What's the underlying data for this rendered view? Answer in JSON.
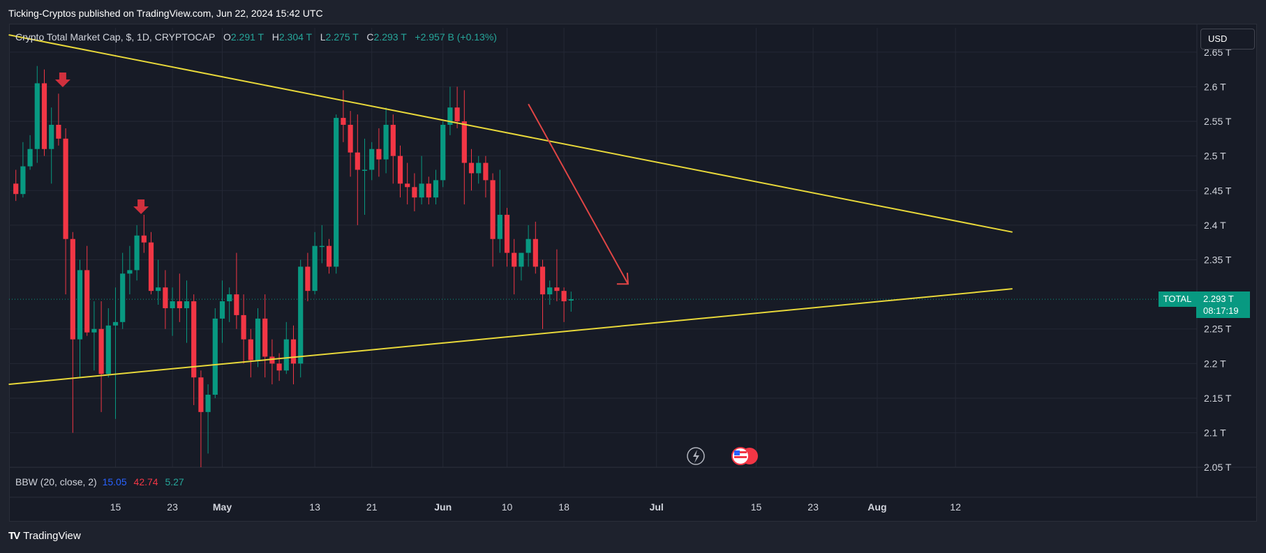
{
  "publisher": "Ticking-Cryptos published on TradingView.com, Jun 22, 2024 15:42 UTC",
  "legend": {
    "symbol": "Crypto Total Market Cap, $, 1D, CRYPTOCAP",
    "o_label": "O",
    "o_value": "2.291 T",
    "h_label": "H",
    "h_value": "2.304 T",
    "l_label": "L",
    "l_value": "2.275 T",
    "c_label": "C",
    "c_value": "2.293 T",
    "change": "+2.957 B (+0.13%)"
  },
  "currency_button": "USD",
  "indicator": {
    "name": "BBW (20, close, 2)",
    "v1": "15.05",
    "v2": "42.74",
    "v3": "5.27"
  },
  "price_tag": {
    "symbol": "TOTAL",
    "price": "2.293 T",
    "countdown": "08:17:19"
  },
  "footer": {
    "logo": "TV",
    "brand": "TradingView"
  },
  "colors": {
    "up": "#089981",
    "down": "#f23645",
    "trendline": "#e8d83a",
    "arrow": "#e04545",
    "background": "#171b26"
  },
  "chart_data": {
    "type": "candlestick",
    "y_unit": "T USD",
    "ylim": [
      2.02,
      2.68
    ],
    "y_ticks": [
      2.05,
      2.1,
      2.15,
      2.2,
      2.25,
      2.35,
      2.4,
      2.45,
      2.5,
      2.55,
      2.6,
      2.65
    ],
    "y_tick_labels": [
      "2.05 T",
      "2.1 T",
      "2.15 T",
      "2.2 T",
      "2.25 T",
      "2.35 T",
      "2.4 T",
      "2.45 T",
      "2.5 T",
      "2.55 T",
      "2.6 T",
      "2.65 T"
    ],
    "x_axis_labels": [
      {
        "label": "15",
        "day": 15
      },
      {
        "label": "23",
        "day": 23
      },
      {
        "label": "May",
        "day": 30,
        "bold": true
      },
      {
        "label": "13",
        "day": 43
      },
      {
        "label": "21",
        "day": 51
      },
      {
        "label": "Jun",
        "day": 61,
        "bold": true
      },
      {
        "label": "10",
        "day": 70
      },
      {
        "label": "18",
        "day": 78
      },
      {
        "label": "Jul",
        "day": 91,
        "bold": true
      },
      {
        "label": "15",
        "day": 105
      },
      {
        "label": "23",
        "day": 113
      },
      {
        "label": "Aug",
        "day": 122,
        "bold": true
      },
      {
        "label": "12",
        "day": 133
      }
    ],
    "candles": [
      {
        "day": 1,
        "o": 2.46,
        "h": 2.48,
        "l": 2.435,
        "c": 2.445
      },
      {
        "day": 2,
        "o": 2.445,
        "h": 2.52,
        "l": 2.44,
        "c": 2.485
      },
      {
        "day": 3,
        "o": 2.485,
        "h": 2.53,
        "l": 2.48,
        "c": 2.51
      },
      {
        "day": 4,
        "o": 2.51,
        "h": 2.63,
        "l": 2.49,
        "c": 2.605
      },
      {
        "day": 5,
        "o": 2.605,
        "h": 2.625,
        "l": 2.5,
        "c": 2.51
      },
      {
        "day": 6,
        "o": 2.51,
        "h": 2.57,
        "l": 2.46,
        "c": 2.545
      },
      {
        "day": 7,
        "o": 2.545,
        "h": 2.59,
        "l": 2.515,
        "c": 2.525
      },
      {
        "day": 8,
        "o": 2.525,
        "h": 2.54,
        "l": 2.3,
        "c": 2.38
      },
      {
        "day": 9,
        "o": 2.38,
        "h": 2.39,
        "l": 2.1,
        "c": 2.235
      },
      {
        "day": 10,
        "o": 2.235,
        "h": 2.35,
        "l": 2.18,
        "c": 2.335
      },
      {
        "day": 11,
        "o": 2.335,
        "h": 2.37,
        "l": 2.24,
        "c": 2.245
      },
      {
        "day": 12,
        "o": 2.245,
        "h": 2.29,
        "l": 2.19,
        "c": 2.25
      },
      {
        "day": 13,
        "o": 2.25,
        "h": 2.29,
        "l": 2.13,
        "c": 2.185
      },
      {
        "day": 14,
        "o": 2.185,
        "h": 2.28,
        "l": 2.18,
        "c": 2.255
      },
      {
        "day": 15,
        "o": 2.255,
        "h": 2.31,
        "l": 2.12,
        "c": 2.26
      },
      {
        "day": 16,
        "o": 2.26,
        "h": 2.36,
        "l": 2.25,
        "c": 2.33
      },
      {
        "day": 17,
        "o": 2.33,
        "h": 2.37,
        "l": 2.3,
        "c": 2.335
      },
      {
        "day": 18,
        "o": 2.335,
        "h": 2.4,
        "l": 2.32,
        "c": 2.385
      },
      {
        "day": 19,
        "o": 2.385,
        "h": 2.415,
        "l": 2.36,
        "c": 2.375
      },
      {
        "day": 20,
        "o": 2.375,
        "h": 2.39,
        "l": 2.3,
        "c": 2.305
      },
      {
        "day": 21,
        "o": 2.305,
        "h": 2.35,
        "l": 2.285,
        "c": 2.31
      },
      {
        "day": 22,
        "o": 2.31,
        "h": 2.335,
        "l": 2.25,
        "c": 2.28
      },
      {
        "day": 23,
        "o": 2.28,
        "h": 2.31,
        "l": 2.24,
        "c": 2.29
      },
      {
        "day": 24,
        "o": 2.29,
        "h": 2.33,
        "l": 2.26,
        "c": 2.28
      },
      {
        "day": 25,
        "o": 2.28,
        "h": 2.32,
        "l": 2.23,
        "c": 2.29
      },
      {
        "day": 26,
        "o": 2.29,
        "h": 2.3,
        "l": 2.14,
        "c": 2.18
      },
      {
        "day": 27,
        "o": 2.18,
        "h": 2.19,
        "l": 2.04,
        "c": 2.13
      },
      {
        "day": 28,
        "o": 2.13,
        "h": 2.17,
        "l": 2.07,
        "c": 2.155
      },
      {
        "day": 29,
        "o": 2.155,
        "h": 2.28,
        "l": 2.15,
        "c": 2.265
      },
      {
        "day": 30,
        "o": 2.265,
        "h": 2.32,
        "l": 2.23,
        "c": 2.29
      },
      {
        "day": 31,
        "o": 2.29,
        "h": 2.31,
        "l": 2.26,
        "c": 2.3
      },
      {
        "day": 32,
        "o": 2.3,
        "h": 2.36,
        "l": 2.25,
        "c": 2.27
      },
      {
        "day": 33,
        "o": 2.27,
        "h": 2.3,
        "l": 2.2,
        "c": 2.235
      },
      {
        "day": 34,
        "o": 2.235,
        "h": 2.25,
        "l": 2.18,
        "c": 2.205
      },
      {
        "day": 35,
        "o": 2.205,
        "h": 2.28,
        "l": 2.195,
        "c": 2.265
      },
      {
        "day": 36,
        "o": 2.265,
        "h": 2.3,
        "l": 2.18,
        "c": 2.21
      },
      {
        "day": 37,
        "o": 2.21,
        "h": 2.235,
        "l": 2.17,
        "c": 2.2
      },
      {
        "day": 38,
        "o": 2.2,
        "h": 2.215,
        "l": 2.175,
        "c": 2.19
      },
      {
        "day": 39,
        "o": 2.19,
        "h": 2.26,
        "l": 2.185,
        "c": 2.235
      },
      {
        "day": 40,
        "o": 2.235,
        "h": 2.255,
        "l": 2.17,
        "c": 2.2
      },
      {
        "day": 41,
        "o": 2.2,
        "h": 2.35,
        "l": 2.18,
        "c": 2.34
      },
      {
        "day": 42,
        "o": 2.34,
        "h": 2.36,
        "l": 2.29,
        "c": 2.305
      },
      {
        "day": 43,
        "o": 2.305,
        "h": 2.39,
        "l": 2.3,
        "c": 2.37
      },
      {
        "day": 44,
        "o": 2.37,
        "h": 2.4,
        "l": 2.345,
        "c": 2.37
      },
      {
        "day": 45,
        "o": 2.37,
        "h": 2.38,
        "l": 2.33,
        "c": 2.34
      },
      {
        "day": 46,
        "o": 2.34,
        "h": 2.56,
        "l": 2.33,
        "c": 2.555
      },
      {
        "day": 47,
        "o": 2.555,
        "h": 2.595,
        "l": 2.52,
        "c": 2.545
      },
      {
        "day": 48,
        "o": 2.545,
        "h": 2.565,
        "l": 2.47,
        "c": 2.505
      },
      {
        "day": 49,
        "o": 2.505,
        "h": 2.56,
        "l": 2.4,
        "c": 2.48
      },
      {
        "day": 50,
        "o": 2.48,
        "h": 2.525,
        "l": 2.415,
        "c": 2.48
      },
      {
        "day": 51,
        "o": 2.48,
        "h": 2.52,
        "l": 2.465,
        "c": 2.51
      },
      {
        "day": 52,
        "o": 2.51,
        "h": 2.54,
        "l": 2.47,
        "c": 2.495
      },
      {
        "day": 53,
        "o": 2.495,
        "h": 2.57,
        "l": 2.475,
        "c": 2.545
      },
      {
        "day": 54,
        "o": 2.545,
        "h": 2.56,
        "l": 2.46,
        "c": 2.5
      },
      {
        "day": 55,
        "o": 2.5,
        "h": 2.515,
        "l": 2.44,
        "c": 2.46
      },
      {
        "day": 56,
        "o": 2.46,
        "h": 2.49,
        "l": 2.43,
        "c": 2.455
      },
      {
        "day": 57,
        "o": 2.455,
        "h": 2.475,
        "l": 2.42,
        "c": 2.44
      },
      {
        "day": 58,
        "o": 2.44,
        "h": 2.5,
        "l": 2.43,
        "c": 2.46
      },
      {
        "day": 59,
        "o": 2.46,
        "h": 2.47,
        "l": 2.43,
        "c": 2.44
      },
      {
        "day": 60,
        "o": 2.44,
        "h": 2.48,
        "l": 2.43,
        "c": 2.465
      },
      {
        "day": 61,
        "o": 2.465,
        "h": 2.55,
        "l": 2.455,
        "c": 2.545
      },
      {
        "day": 62,
        "o": 2.545,
        "h": 2.6,
        "l": 2.53,
        "c": 2.57
      },
      {
        "day": 63,
        "o": 2.57,
        "h": 2.6,
        "l": 2.54,
        "c": 2.55
      },
      {
        "day": 64,
        "o": 2.55,
        "h": 2.595,
        "l": 2.43,
        "c": 2.49
      },
      {
        "day": 65,
        "o": 2.49,
        "h": 2.51,
        "l": 2.45,
        "c": 2.475
      },
      {
        "day": 66,
        "o": 2.475,
        "h": 2.5,
        "l": 2.46,
        "c": 2.49
      },
      {
        "day": 67,
        "o": 2.49,
        "h": 2.5,
        "l": 2.44,
        "c": 2.465
      },
      {
        "day": 68,
        "o": 2.465,
        "h": 2.475,
        "l": 2.34,
        "c": 2.38
      },
      {
        "day": 69,
        "o": 2.38,
        "h": 2.48,
        "l": 2.36,
        "c": 2.415
      },
      {
        "day": 70,
        "o": 2.415,
        "h": 2.425,
        "l": 2.34,
        "c": 2.36
      },
      {
        "day": 71,
        "o": 2.36,
        "h": 2.38,
        "l": 2.3,
        "c": 2.34
      },
      {
        "day": 72,
        "o": 2.34,
        "h": 2.36,
        "l": 2.32,
        "c": 2.36
      },
      {
        "day": 73,
        "o": 2.36,
        "h": 2.4,
        "l": 2.34,
        "c": 2.38
      },
      {
        "day": 74,
        "o": 2.38,
        "h": 2.405,
        "l": 2.33,
        "c": 2.34
      },
      {
        "day": 75,
        "o": 2.34,
        "h": 2.35,
        "l": 2.25,
        "c": 2.3
      },
      {
        "day": 76,
        "o": 2.3,
        "h": 2.32,
        "l": 2.285,
        "c": 2.31
      },
      {
        "day": 77,
        "o": 2.31,
        "h": 2.365,
        "l": 2.29,
        "c": 2.305
      },
      {
        "day": 78,
        "o": 2.305,
        "h": 2.31,
        "l": 2.26,
        "c": 2.29
      },
      {
        "day": 79,
        "o": 2.291,
        "h": 2.304,
        "l": 2.275,
        "c": 2.293
      }
    ],
    "trendlines": [
      {
        "name": "upper",
        "from": {
          "day": 0,
          "price": 2.675
        },
        "to": {
          "day": 141,
          "price": 2.39
        }
      },
      {
        "name": "lower",
        "from": {
          "day": 0,
          "price": 2.17
        },
        "to": {
          "day": 141,
          "price": 2.308
        }
      }
    ],
    "projection_arrow": {
      "from": {
        "day": 73,
        "price": 2.575
      },
      "to": {
        "day": 87,
        "price": 2.315
      }
    },
    "markers": [
      {
        "type": "down-arrow",
        "day": 7
      },
      {
        "type": "down-arrow",
        "day": 18
      }
    ],
    "last_price_line": 2.293
  }
}
